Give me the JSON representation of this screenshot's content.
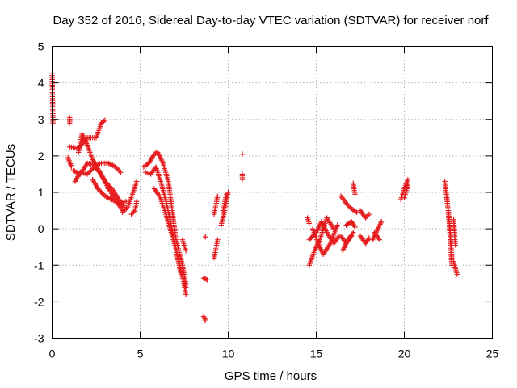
{
  "chart_data": {
    "type": "scatter",
    "title": "Day 352 of 2016, Sidereal Day-to-day VTEC variation (SDTVAR) for receiver norf",
    "xlabel": "GPS time / hours",
    "ylabel": "SDTVAR / TECUs",
    "xlim": [
      0,
      25
    ],
    "ylim": [
      -3,
      5
    ],
    "xticks": [
      0,
      5,
      10,
      15,
      20,
      25
    ],
    "yticks": [
      -3,
      -2,
      -1,
      0,
      1,
      2,
      3,
      4,
      5
    ],
    "grid": true,
    "marker": "+",
    "color": "#e41a1c",
    "series": [
      {
        "name": "norf",
        "segments": [
          {
            "x": [
              0.0,
              0.05
            ],
            "y": [
              4.25,
              2.9
            ]
          },
          {
            "x": [
              1.0,
              1.0
            ],
            "y": [
              3.05,
              2.9
            ]
          },
          {
            "x": [
              0.9,
              1.1
            ],
            "y": [
              1.95,
              1.7
            ]
          },
          {
            "x": [
              1.0,
              1.5,
              2.0,
              2.5,
              2.8,
              3.0
            ],
            "y": [
              2.25,
              2.2,
              2.5,
              2.5,
              2.9,
              2.98
            ]
          },
          {
            "x": [
              1.3,
              1.6,
              2.0,
              2.4,
              2.7,
              3.0,
              3.4,
              3.8,
              4.1
            ],
            "y": [
              1.3,
              1.55,
              1.5,
              1.7,
              1.55,
              1.3,
              1.1,
              0.8,
              0.6
            ]
          },
          {
            "x": [
              1.5,
              1.7,
              2.0,
              2.3,
              2.6,
              2.9,
              3.2,
              3.6,
              4.0
            ],
            "y": [
              2.1,
              2.6,
              2.3,
              1.9,
              1.65,
              1.4,
              1.1,
              0.8,
              0.5
            ]
          },
          {
            "x": [
              1.2,
              1.6,
              2.0,
              2.4,
              2.8,
              3.2,
              3.6,
              3.9
            ],
            "y": [
              1.6,
              1.5,
              1.8,
              1.75,
              1.8,
              1.8,
              1.7,
              1.55
            ]
          },
          {
            "x": [
              2.3,
              2.6,
              3.0,
              3.4,
              3.8,
              4.2
            ],
            "y": [
              1.35,
              1.1,
              0.9,
              0.8,
              0.7,
              0.75
            ]
          },
          {
            "x": [
              4.0,
              4.3,
              4.6,
              4.8
            ],
            "y": [
              0.45,
              0.6,
              1.0,
              1.3
            ]
          },
          {
            "x": [
              4.5,
              4.7,
              4.8
            ],
            "y": [
              0.4,
              0.5,
              0.75
            ]
          },
          {
            "x": [
              5.2,
              5.5,
              5.8,
              6.0,
              6.3,
              6.6,
              6.8,
              7.0,
              7.2,
              7.4,
              7.6
            ],
            "y": [
              1.7,
              1.8,
              2.05,
              2.1,
              1.8,
              1.3,
              0.6,
              -0.2,
              -0.6,
              -1.0,
              -1.5
            ]
          },
          {
            "x": [
              5.3,
              5.6,
              5.9,
              6.2,
              6.5,
              6.8,
              7.1,
              7.4,
              7.6
            ],
            "y": [
              1.55,
              1.5,
              1.7,
              1.25,
              0.7,
              0.0,
              -0.7,
              -1.3,
              -1.8
            ]
          },
          {
            "x": [
              5.8,
              6.1,
              6.4,
              6.7,
              7.0,
              7.3,
              7.6
            ],
            "y": [
              1.1,
              0.9,
              0.5,
              0.0,
              -0.5,
              -1.2,
              -1.6
            ]
          },
          {
            "x": [
              7.4,
              7.6
            ],
            "y": [
              -0.3,
              -0.6
            ]
          },
          {
            "x": [
              8.7,
              8.7
            ],
            "y": [
              -0.22,
              -0.22
            ]
          },
          {
            "x": [
              8.6,
              8.8
            ],
            "y": [
              -1.35,
              -1.4
            ]
          },
          {
            "x": [
              8.6,
              8.7
            ],
            "y": [
              -2.4,
              -2.5
            ]
          },
          {
            "x": [
              9.2,
              9.4
            ],
            "y": [
              -0.8,
              -0.3
            ]
          },
          {
            "x": [
              9.2,
              9.4
            ],
            "y": [
              0.4,
              0.9
            ]
          },
          {
            "x": [
              9.6,
              9.8,
              10.0
            ],
            "y": [
              0.1,
              0.5,
              1.0
            ]
          },
          {
            "x": [
              9.7,
              9.9
            ],
            "y": [
              0.5,
              0.95
            ]
          },
          {
            "x": [
              10.8,
              10.8
            ],
            "y": [
              2.05,
              2.05
            ]
          },
          {
            "x": [
              10.8,
              10.8
            ],
            "y": [
              1.5,
              1.35
            ]
          },
          {
            "x": [
              14.5,
              14.6
            ],
            "y": [
              0.3,
              0.15
            ]
          },
          {
            "x": [
              14.6,
              14.9,
              15.2,
              15.6,
              16.0
            ],
            "y": [
              -1.0,
              -0.6,
              -0.3,
              0.3,
              0.0
            ]
          },
          {
            "x": [
              14.8,
              15.1,
              15.4,
              15.8,
              16.2
            ],
            "y": [
              0.0,
              -0.4,
              -0.7,
              -0.4,
              0.1
            ]
          },
          {
            "x": [
              14.6,
              15.0,
              15.3,
              15.6,
              16.0,
              16.3
            ],
            "y": [
              -0.3,
              -0.1,
              0.2,
              -0.1,
              -0.4,
              -0.2
            ]
          },
          {
            "x": [
              16.4,
              16.7,
              17.0,
              17.3
            ],
            "y": [
              0.9,
              0.7,
              0.55,
              0.45
            ]
          },
          {
            "x": [
              16.5,
              16.8,
              17.1
            ],
            "y": [
              -0.6,
              -0.3,
              -0.1
            ]
          },
          {
            "x": [
              16.4,
              16.7,
              17.0
            ],
            "y": [
              -0.2,
              -0.4,
              -0.2
            ]
          },
          {
            "x": [
              16.7,
              17.0,
              17.2
            ],
            "y": [
              0.1,
              0.2,
              0.05
            ]
          },
          {
            "x": [
              17.1,
              17.2
            ],
            "y": [
              1.25,
              0.95
            ]
          },
          {
            "x": [
              17.5,
              17.8,
              18.0
            ],
            "y": [
              0.5,
              0.3,
              0.4
            ]
          },
          {
            "x": [
              17.5,
              17.8,
              18.0
            ],
            "y": [
              -0.2,
              -0.4,
              -0.25
            ]
          },
          {
            "x": [
              18.2,
              18.5,
              18.7
            ],
            "y": [
              -0.3,
              0.0,
              0.2
            ]
          },
          {
            "x": [
              18.3,
              18.6
            ],
            "y": [
              -0.1,
              -0.3
            ]
          },
          {
            "x": [
              19.8,
              20.0,
              20.2
            ],
            "y": [
              0.8,
              1.1,
              1.35
            ]
          },
          {
            "x": [
              20.0,
              20.2
            ],
            "y": [
              0.85,
              1.2
            ]
          },
          {
            "x": [
              22.3,
              22.5,
              22.6,
              22.7
            ],
            "y": [
              1.3,
              0.5,
              -0.2,
              -1.0
            ]
          },
          {
            "x": [
              22.4,
              22.6,
              22.7
            ],
            "y": [
              0.9,
              0.0,
              -0.8
            ]
          },
          {
            "x": [
              22.8,
              22.9
            ],
            "y": [
              0.25,
              -0.45
            ]
          },
          {
            "x": [
              22.8,
              23.0
            ],
            "y": [
              -0.9,
              -1.25
            ]
          }
        ]
      }
    ]
  }
}
